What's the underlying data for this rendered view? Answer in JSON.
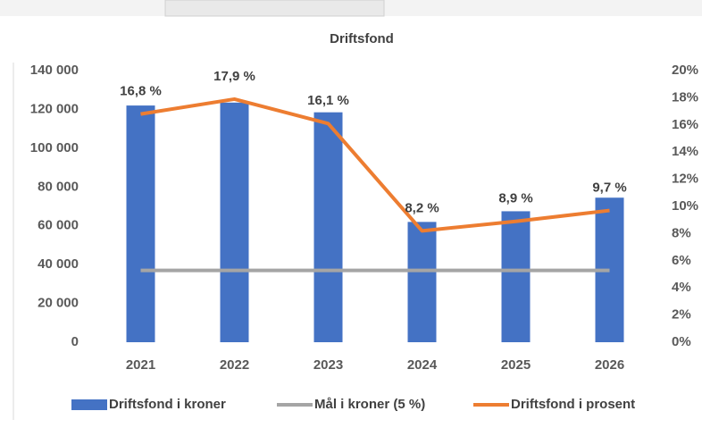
{
  "chart_data": {
    "type": "bar",
    "title": "Driftsfond",
    "categories": [
      "2021",
      "2022",
      "2023",
      "2024",
      "2025",
      "2026"
    ],
    "series": [
      {
        "name": "Driftsfond i kroner",
        "type": "bar",
        "color": "#4472c4",
        "values": [
          122000,
          123500,
          118500,
          62000,
          67500,
          74500
        ]
      },
      {
        "name": "Mål i kroner (5 %)",
        "type": "line",
        "color": "#a5a5a5",
        "values": [
          37000,
          37000,
          37000,
          37000,
          37000,
          37000
        ]
      },
      {
        "name": "Driftsfond i prosent",
        "type": "line",
        "axis": "y2",
        "color": "#ed7d31",
        "values": [
          16.8,
          17.9,
          16.1,
          8.2,
          8.9,
          9.7
        ],
        "value_labels": [
          "16,8 %",
          "17,9 %",
          "16,1 %",
          "8,2 %",
          "8,9 %",
          "9,7 %"
        ]
      }
    ],
    "ylim": [
      0,
      140000
    ],
    "yticks": [
      0,
      {
        "value": 20000,
        "label": "20 000"
      },
      {
        "value": 40000,
        "label": "40 000"
      },
      {
        "value": 60000,
        "label": "60 000"
      },
      {
        "value": 80000,
        "label": "80 000"
      },
      {
        "value": 100000,
        "label": "100 000"
      },
      {
        "value": 120000,
        "label": "120 000"
      },
      {
        "value": 140000,
        "label": "140 000"
      }
    ],
    "y2lim": [
      0,
      20
    ],
    "y2ticks": [
      {
        "value": 0,
        "label": "0%"
      },
      {
        "value": 2,
        "label": "2%"
      },
      {
        "value": 4,
        "label": "4%"
      },
      {
        "value": 6,
        "label": "6%"
      },
      {
        "value": 8,
        "label": "8%"
      },
      {
        "value": 10,
        "label": "10%"
      },
      {
        "value": 12,
        "label": "12%"
      },
      {
        "value": 14,
        "label": "14%"
      },
      {
        "value": 16,
        "label": "16%"
      },
      {
        "value": 18,
        "label": "18%"
      },
      {
        "value": 20,
        "label": "20%"
      }
    ],
    "legend": "bottom",
    "grid": false
  }
}
